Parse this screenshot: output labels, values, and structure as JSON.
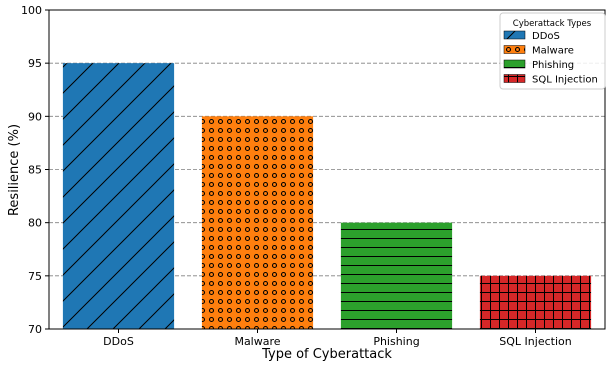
{
  "chart_data": {
    "type": "bar",
    "title": "",
    "xlabel": "Type of Cyberattack",
    "ylabel": "Resilience (%)",
    "categories": [
      "DDoS",
      "Malware",
      "Phishing",
      "SQL Injection"
    ],
    "values": [
      95,
      90,
      80,
      75
    ],
    "ylim": [
      70,
      100
    ],
    "yticks": [
      70,
      75,
      80,
      85,
      90,
      95,
      100
    ],
    "grid": {
      "axis": "y",
      "style": "dashed"
    },
    "colors": [
      "#1f77b4",
      "#ff7f0e",
      "#2ca02c",
      "#d62728"
    ],
    "hatches": [
      "diagonal",
      "circles",
      "horizontal",
      "grid"
    ],
    "legend": {
      "title": "Cyberattack Types",
      "placement": "top-right",
      "entries": [
        "DDoS",
        "Malware",
        "Phishing",
        "SQL Injection"
      ]
    }
  }
}
